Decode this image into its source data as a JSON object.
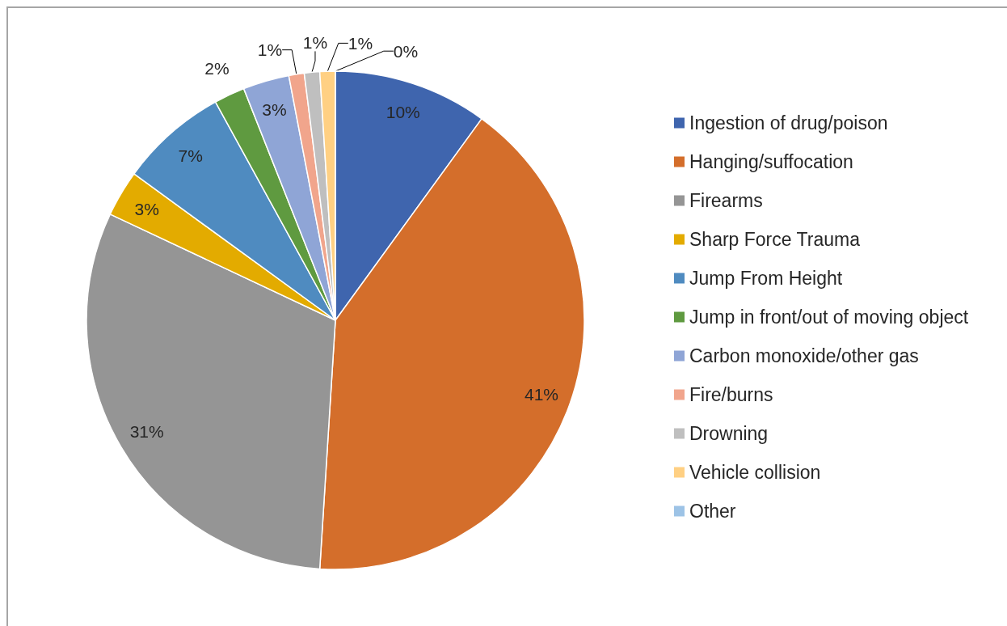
{
  "chart_data": {
    "type": "pie",
    "categories": [
      "Ingestion of drug/poison",
      "Hanging/suffocation",
      "Firearms",
      "Sharp Force Trauma",
      "Jump From Height",
      "Jump in front/out of moving object",
      "Carbon monoxide/other gas",
      "Fire/burns",
      "Drowning",
      "Vehicle collision",
      "Other"
    ],
    "values": [
      10,
      41,
      31,
      3,
      7,
      2,
      3,
      1,
      1,
      1,
      0
    ],
    "value_labels": [
      "10%",
      "41%",
      "31%",
      "3%",
      "7%",
      "2%",
      "3%",
      "1%",
      "1%",
      "1%",
      "0%"
    ],
    "colors": [
      "#3f65ae",
      "#d46e2b",
      "#959595",
      "#e3ab00",
      "#4f8bc0",
      "#5f9a40",
      "#8fa5d6",
      "#f1a58c",
      "#bfbfbf",
      "#ffd083",
      "#9dc3e6"
    ],
    "legend": "right"
  }
}
